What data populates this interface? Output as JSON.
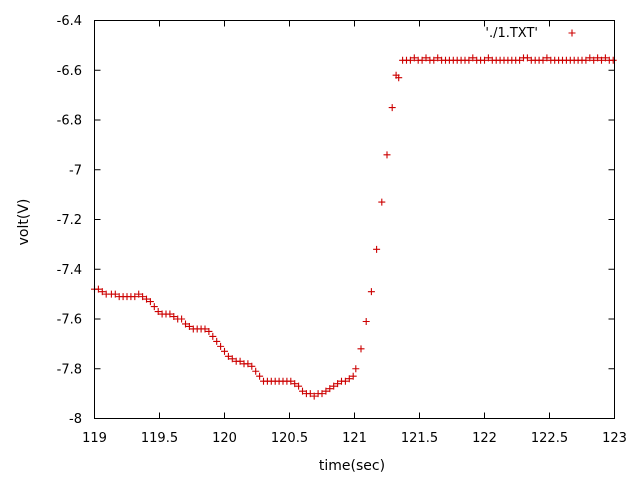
{
  "chart_data": {
    "type": "scatter",
    "title": "",
    "xlabel": "time(sec)",
    "ylabel": "volt(V)",
    "xlim": [
      119,
      123
    ],
    "ylim": [
      -8,
      -6.4
    ],
    "grid": false,
    "legend_position": "top-right",
    "marker": "plus",
    "color": "#cc0000",
    "x_ticks": [
      "119",
      "119.5",
      "120",
      "120.5",
      "121",
      "121.5",
      "122",
      "122.5",
      "123"
    ],
    "y_ticks": [
      "-6.4",
      "-6.6",
      "-6.8",
      "-7",
      "-7.2",
      "-7.4",
      "-7.6",
      "-7.8",
      "-8"
    ],
    "series": [
      {
        "name": "'./1.TXT'",
        "points": [
          [
            119.0,
            -7.48
          ],
          [
            119.03,
            -7.48
          ],
          [
            119.06,
            -7.49
          ],
          [
            119.09,
            -7.5
          ],
          [
            119.13,
            -7.5
          ],
          [
            119.16,
            -7.5
          ],
          [
            119.19,
            -7.51
          ],
          [
            119.22,
            -7.51
          ],
          [
            119.25,
            -7.51
          ],
          [
            119.28,
            -7.51
          ],
          [
            119.31,
            -7.51
          ],
          [
            119.34,
            -7.5
          ],
          [
            119.37,
            -7.51
          ],
          [
            119.4,
            -7.52
          ],
          [
            119.43,
            -7.53
          ],
          [
            119.46,
            -7.55
          ],
          [
            119.49,
            -7.57
          ],
          [
            119.52,
            -7.58
          ],
          [
            119.55,
            -7.58
          ],
          [
            119.58,
            -7.58
          ],
          [
            119.61,
            -7.59
          ],
          [
            119.64,
            -7.6
          ],
          [
            119.67,
            -7.6
          ],
          [
            119.7,
            -7.62
          ],
          [
            119.73,
            -7.63
          ],
          [
            119.76,
            -7.64
          ],
          [
            119.79,
            -7.64
          ],
          [
            119.82,
            -7.64
          ],
          [
            119.85,
            -7.64
          ],
          [
            119.88,
            -7.65
          ],
          [
            119.91,
            -7.67
          ],
          [
            119.94,
            -7.69
          ],
          [
            119.97,
            -7.71
          ],
          [
            120.0,
            -7.73
          ],
          [
            120.03,
            -7.75
          ],
          [
            120.06,
            -7.76
          ],
          [
            120.09,
            -7.77
          ],
          [
            120.12,
            -7.77
          ],
          [
            120.15,
            -7.78
          ],
          [
            120.18,
            -7.78
          ],
          [
            120.21,
            -7.79
          ],
          [
            120.24,
            -7.81
          ],
          [
            120.27,
            -7.83
          ],
          [
            120.3,
            -7.85
          ],
          [
            120.33,
            -7.85
          ],
          [
            120.36,
            -7.85
          ],
          [
            120.39,
            -7.85
          ],
          [
            120.42,
            -7.85
          ],
          [
            120.45,
            -7.85
          ],
          [
            120.48,
            -7.85
          ],
          [
            120.51,
            -7.85
          ],
          [
            120.54,
            -7.86
          ],
          [
            120.57,
            -7.87
          ],
          [
            120.6,
            -7.89
          ],
          [
            120.63,
            -7.9
          ],
          [
            120.66,
            -7.9
          ],
          [
            120.69,
            -7.91
          ],
          [
            120.72,
            -7.9
          ],
          [
            120.75,
            -7.9
          ],
          [
            120.78,
            -7.89
          ],
          [
            120.81,
            -7.88
          ],
          [
            120.84,
            -7.87
          ],
          [
            120.87,
            -7.86
          ],
          [
            120.9,
            -7.85
          ],
          [
            120.93,
            -7.85
          ],
          [
            120.96,
            -7.84
          ],
          [
            120.99,
            -7.83
          ],
          [
            121.01,
            -7.8
          ],
          [
            121.05,
            -7.72
          ],
          [
            121.09,
            -7.61
          ],
          [
            121.13,
            -7.49
          ],
          [
            121.17,
            -7.32
          ],
          [
            121.21,
            -7.13
          ],
          [
            121.25,
            -6.94
          ],
          [
            121.29,
            -6.75
          ],
          [
            121.32,
            -6.62
          ],
          [
            121.34,
            -6.63
          ],
          [
            121.37,
            -6.56
          ],
          [
            121.4,
            -6.56
          ],
          [
            121.43,
            -6.56
          ],
          [
            121.46,
            -6.55
          ],
          [
            121.49,
            -6.56
          ],
          [
            121.52,
            -6.56
          ],
          [
            121.55,
            -6.55
          ],
          [
            121.58,
            -6.56
          ],
          [
            121.61,
            -6.56
          ],
          [
            121.64,
            -6.55
          ],
          [
            121.67,
            -6.56
          ],
          [
            121.7,
            -6.56
          ],
          [
            121.73,
            -6.56
          ],
          [
            121.76,
            -6.56
          ],
          [
            121.79,
            -6.56
          ],
          [
            121.82,
            -6.56
          ],
          [
            121.85,
            -6.56
          ],
          [
            121.88,
            -6.56
          ],
          [
            121.91,
            -6.55
          ],
          [
            121.94,
            -6.56
          ],
          [
            121.97,
            -6.56
          ],
          [
            122.0,
            -6.56
          ],
          [
            122.03,
            -6.55
          ],
          [
            122.06,
            -6.56
          ],
          [
            122.09,
            -6.56
          ],
          [
            122.12,
            -6.56
          ],
          [
            122.15,
            -6.56
          ],
          [
            122.18,
            -6.56
          ],
          [
            122.21,
            -6.56
          ],
          [
            122.24,
            -6.56
          ],
          [
            122.27,
            -6.56
          ],
          [
            122.3,
            -6.55
          ],
          [
            122.33,
            -6.55
          ],
          [
            122.36,
            -6.56
          ],
          [
            122.39,
            -6.56
          ],
          [
            122.42,
            -6.56
          ],
          [
            122.45,
            -6.56
          ],
          [
            122.48,
            -6.55
          ],
          [
            122.51,
            -6.56
          ],
          [
            122.54,
            -6.56
          ],
          [
            122.57,
            -6.56
          ],
          [
            122.6,
            -6.56
          ],
          [
            122.63,
            -6.56
          ],
          [
            122.66,
            -6.56
          ],
          [
            122.69,
            -6.56
          ],
          [
            122.72,
            -6.56
          ],
          [
            122.75,
            -6.56
          ],
          [
            122.78,
            -6.56
          ],
          [
            122.81,
            -6.55
          ],
          [
            122.84,
            -6.56
          ],
          [
            122.87,
            -6.55
          ],
          [
            122.9,
            -6.56
          ],
          [
            122.93,
            -6.55
          ],
          [
            122.96,
            -6.56
          ],
          [
            122.99,
            -6.56
          ]
        ]
      }
    ]
  }
}
